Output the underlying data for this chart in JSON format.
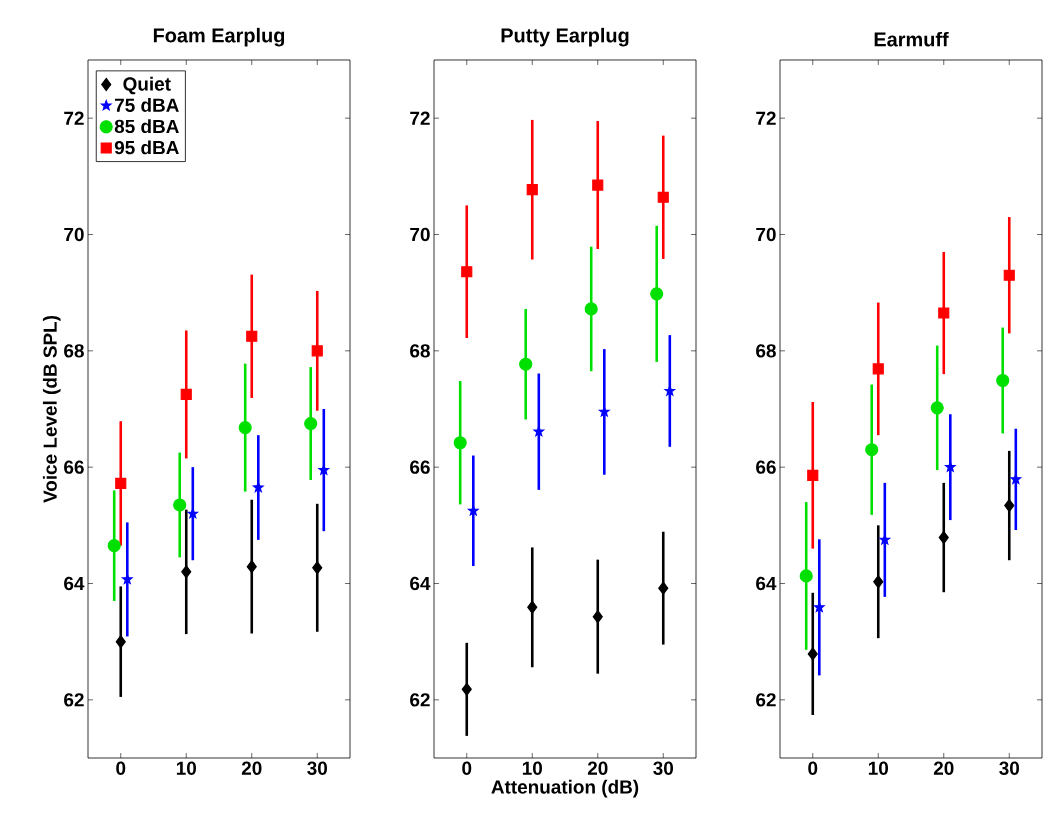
{
  "chart_data": [
    {
      "type": "scatter",
      "title": "Foam Earplug",
      "ylabel": "Voice Level (dB SPL)",
      "xlim": [
        -5,
        35
      ],
      "ylim": [
        61,
        73
      ],
      "xticks": [
        0,
        10,
        20,
        30
      ],
      "yticks": [
        62,
        64,
        66,
        68,
        70,
        72
      ],
      "legend": "top left",
      "grid": false,
      "series": [
        {
          "name": "Quiet",
          "color": "#000000",
          "marker": "diamond",
          "x": [
            0,
            10,
            20,
            30
          ],
          "values": [
            63.0,
            64.2,
            64.29,
            64.27
          ],
          "errors": [
            0.95,
            1.07,
            1.15,
            1.1
          ]
        },
        {
          "name": "75 dBA",
          "color": "#0000ff",
          "marker": "star",
          "x": [
            1,
            11,
            21,
            31
          ],
          "values": [
            64.07,
            65.2,
            65.65,
            65.95
          ],
          "errors": [
            0.98,
            0.8,
            0.9,
            1.05
          ]
        },
        {
          "name": "85 dBA",
          "color": "#00e000",
          "marker": "circle",
          "x": [
            -1,
            9,
            19,
            29
          ],
          "values": [
            64.65,
            65.35,
            66.68,
            66.75
          ],
          "errors": [
            0.95,
            0.9,
            1.1,
            0.97
          ]
        },
        {
          "name": "95 dBA",
          "color": "#ff0000",
          "marker": "square",
          "x": [
            0,
            10,
            20,
            30
          ],
          "values": [
            65.72,
            67.25,
            68.25,
            68.0
          ],
          "errors": [
            1.07,
            1.1,
            1.06,
            1.03
          ]
        }
      ]
    },
    {
      "type": "scatter",
      "title": "Putty Earplug",
      "xlabel": "Attenuation (dB)",
      "xlim": [
        -5,
        35
      ],
      "ylim": [
        61,
        73
      ],
      "xticks": [
        0,
        10,
        20,
        30
      ],
      "yticks": [
        62,
        64,
        66,
        68,
        70,
        72
      ],
      "grid": false,
      "series": [
        {
          "color": "#000000",
          "marker": "diamond",
          "x": [
            0,
            10,
            20,
            30
          ],
          "values": [
            62.18,
            63.59,
            63.43,
            63.92
          ],
          "errors": [
            0.8,
            1.03,
            0.98,
            0.97
          ]
        },
        {
          "color": "#0000ff",
          "marker": "star",
          "x": [
            1,
            11,
            21,
            31
          ],
          "values": [
            65.25,
            66.61,
            66.95,
            67.31
          ],
          "errors": [
            0.95,
            1.0,
            1.08,
            0.96
          ]
        },
        {
          "color": "#00e000",
          "marker": "circle",
          "x": [
            -1,
            9,
            19,
            29
          ],
          "values": [
            66.42,
            67.77,
            68.72,
            68.98
          ],
          "errors": [
            1.06,
            0.95,
            1.07,
            1.17
          ]
        },
        {
          "color": "#ff0000",
          "marker": "square",
          "x": [
            0,
            10,
            20,
            30
          ],
          "values": [
            69.36,
            70.77,
            70.85,
            70.64
          ],
          "errors": [
            1.14,
            1.2,
            1.1,
            1.06
          ]
        }
      ]
    },
    {
      "type": "scatter",
      "title": "Earmuff",
      "xlim": [
        -5,
        35
      ],
      "ylim": [
        61,
        73
      ],
      "xticks": [
        0,
        10,
        20,
        30
      ],
      "yticks": [
        62,
        64,
        66,
        68,
        70,
        72
      ],
      "grid": false,
      "series": [
        {
          "color": "#000000",
          "marker": "diamond",
          "x": [
            0,
            10,
            20,
            30
          ],
          "values": [
            62.79,
            64.03,
            64.79,
            65.34
          ],
          "errors": [
            1.05,
            0.97,
            0.94,
            0.94
          ]
        },
        {
          "color": "#0000ff",
          "marker": "star",
          "x": [
            1,
            11,
            21,
            31
          ],
          "values": [
            63.59,
            64.75,
            66.0,
            65.79
          ],
          "errors": [
            1.17,
            0.98,
            0.91,
            0.87
          ]
        },
        {
          "color": "#00e000",
          "marker": "circle",
          "x": [
            -1,
            9,
            19,
            29
          ],
          "values": [
            64.13,
            66.3,
            67.02,
            67.49
          ],
          "errors": [
            1.27,
            1.12,
            1.07,
            0.91
          ]
        },
        {
          "color": "#ff0000",
          "marker": "square",
          "x": [
            0,
            10,
            20,
            30
          ],
          "values": [
            65.86,
            67.69,
            68.65,
            69.3
          ],
          "errors": [
            1.26,
            1.14,
            1.05,
            1.0
          ]
        }
      ]
    }
  ]
}
